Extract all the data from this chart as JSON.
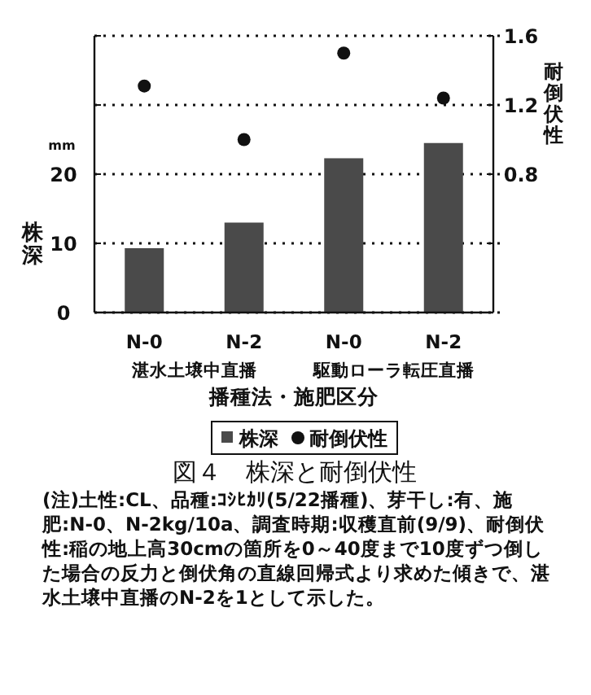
{
  "chart_data": {
    "type": "bar",
    "title": "図４　株深と耐倒伏性",
    "xlabel": "播種法・施肥区分",
    "ylabel": "株深",
    "y2label": "耐倒伏性",
    "categories": [
      "N-0",
      "N-2",
      "N-0",
      "N-2"
    ],
    "series": [
      {
        "name": "株深",
        "color": "#4a4a4a",
        "values": [
          9.3,
          13.0,
          22.3,
          24.5
        ]
      },
      {
        "name": "耐倒伏性",
        "type": "scatter",
        "axis": "y2",
        "color": "#111111",
        "marker": "circle",
        "values": [
          1.31,
          1.0,
          1.5,
          1.24
        ]
      }
    ],
    "ylim": [
      0,
      40
    ],
    "yticks": [
      0,
      10,
      20,
      {
        "value": 30,
        "label": null
      },
      {
        "value": 40,
        "label": null
      }
    ],
    "y2lim": [
      0,
      1.6
    ],
    "y2ticks": [
      {
        "value": 0.4,
        "label": null
      },
      0.8,
      1.2,
      1.6
    ],
    "grid": "y",
    "legend": "bottom",
    "annotations": [
      "湛水土壌中直播",
      "駆動ローラ転圧直播",
      "mm",
      "(注)土性:CL、品種:ｺｼﾋｶﾘ(5/22播種)、芽干し:有、施肥:N-0、N-2kg/10a、調査時期:収穫直前(9/9)、耐倒伏性:稲の地上高30cmの箇所を0～40度まで10度ずつ倒した場合の反力と倒伏角の直線回帰式より求めた傾きで、湛水土壌中直播のN-2を1として示した。"
    ]
  }
}
